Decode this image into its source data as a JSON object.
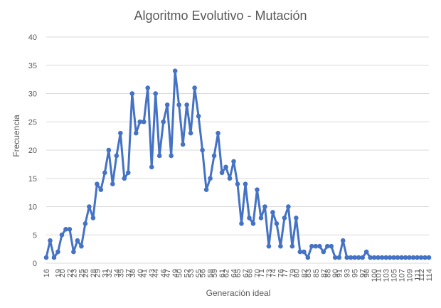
{
  "chart_data": {
    "type": "line",
    "title": "Algoritmo Evolutivo - Mutación",
    "xlabel": "Generación ideal",
    "ylabel": "Frecuencia",
    "ylim": [
      0,
      40
    ],
    "yticks": [
      0,
      5,
      10,
      15,
      20,
      25,
      30,
      35,
      40
    ],
    "grid": true,
    "legend": "none",
    "color": "#4472c4",
    "x": [
      16,
      17,
      18,
      19,
      20,
      21,
      22,
      23,
      24,
      25,
      26,
      27,
      28,
      29,
      30,
      31,
      32,
      33,
      34,
      35,
      36,
      37,
      38,
      39,
      40,
      41,
      42,
      43,
      44,
      45,
      46,
      47,
      48,
      49,
      50,
      51,
      52,
      53,
      54,
      55,
      56,
      57,
      58,
      59,
      60,
      61,
      62,
      63,
      64,
      65,
      66,
      67,
      68,
      69,
      70,
      71,
      72,
      73,
      74,
      75,
      76,
      77,
      78,
      79,
      80,
      81,
      82,
      83,
      84,
      85,
      86,
      87,
      88,
      89,
      90,
      91,
      92,
      93,
      94,
      95,
      96,
      97,
      98,
      99,
      100,
      101,
      102,
      103,
      104,
      105,
      106,
      107,
      108,
      109,
      110,
      111,
      112,
      113,
      114
    ],
    "xtick_labels": [
      "16",
      "19",
      "20",
      "22",
      "23",
      "25",
      "26",
      "28",
      "29",
      "31",
      "32",
      "34",
      "35",
      "37",
      "38",
      "40",
      "41",
      "43",
      "44",
      "46",
      "47",
      "49",
      "50",
      "52",
      "53",
      "55",
      "56",
      "58",
      "59",
      "61",
      "62",
      "64",
      "65",
      "67",
      "68",
      "70",
      "71",
      "73",
      "74",
      "76",
      "77",
      "79",
      "80",
      "82",
      "83",
      "85",
      "87",
      "88",
      "90",
      "91",
      "93",
      "95",
      "97",
      "98",
      "100",
      "101",
      "103",
      "105",
      "107",
      "109",
      "111",
      "112",
      "114"
    ],
    "xtick_values": [
      16,
      19,
      20,
      22,
      23,
      25,
      26,
      28,
      29,
      31,
      32,
      34,
      35,
      37,
      38,
      40,
      41,
      43,
      44,
      46,
      47,
      49,
      50,
      52,
      53,
      55,
      56,
      58,
      59,
      61,
      62,
      64,
      65,
      67,
      68,
      70,
      71,
      73,
      74,
      76,
      77,
      79,
      80,
      82,
      83,
      85,
      87,
      88,
      90,
      91,
      93,
      95,
      97,
      98,
      100,
      101,
      103,
      105,
      107,
      109,
      111,
      112,
      114
    ],
    "series": [
      {
        "values": [
          1,
          4,
          1,
          2,
          5,
          6,
          6,
          2,
          4,
          3,
          7,
          10,
          8,
          14,
          13,
          16,
          20,
          14,
          19,
          23,
          15,
          16,
          30,
          23,
          25,
          25,
          31,
          17,
          30,
          19,
          25,
          28,
          19,
          34,
          28,
          21,
          28,
          23,
          31,
          26,
          20,
          13,
          15,
          19,
          23,
          16,
          17,
          15,
          18,
          14,
          7,
          14,
          8,
          7,
          13,
          8,
          10,
          3,
          9,
          7,
          3,
          8,
          10,
          3,
          8,
          2,
          2,
          1,
          3,
          3,
          3,
          2,
          3,
          3,
          1,
          1,
          4,
          1,
          1,
          1,
          1,
          1,
          2,
          1,
          1,
          1,
          1,
          1,
          1,
          1,
          1,
          1,
          1,
          1,
          1,
          1,
          1,
          1,
          1
        ]
      }
    ]
  }
}
